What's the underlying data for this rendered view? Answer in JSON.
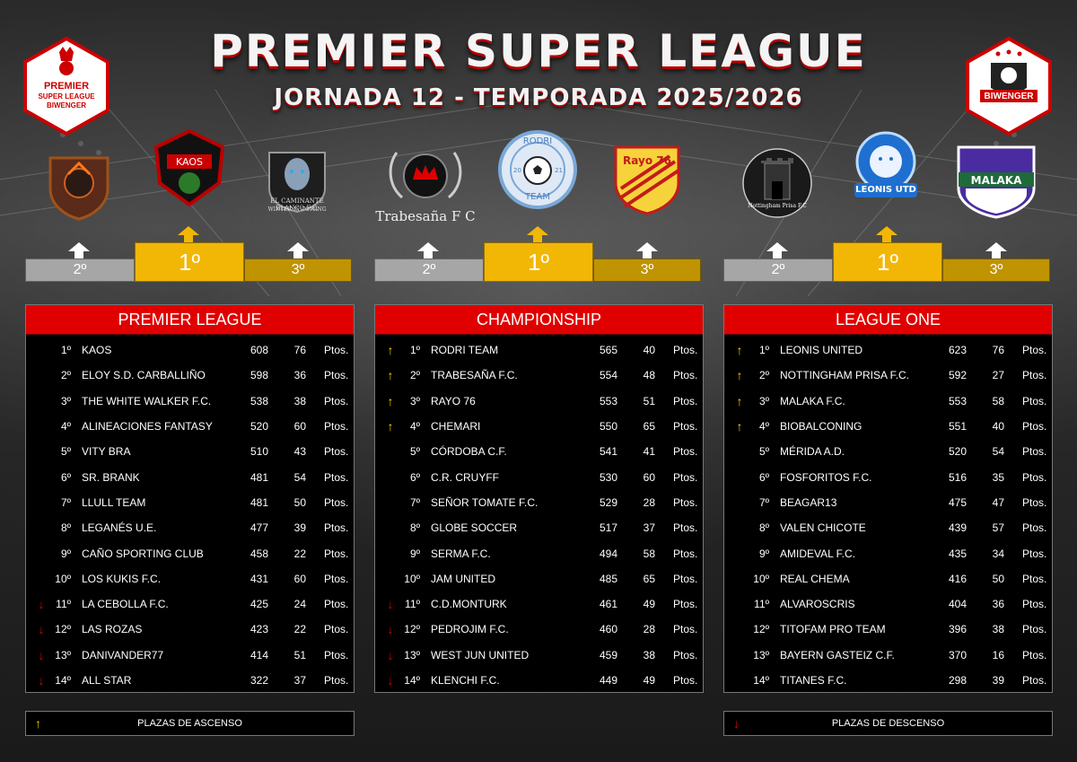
{
  "header": {
    "title": "PREMIER SUPER LEAGUE",
    "subtitle": "JORNADA 12 - TEMPORADA 2025/2026",
    "left_logo": [
      "PREMIER",
      "SUPER LEAGUE",
      "BIWENGER"
    ],
    "right_logo": "BIWENGER"
  },
  "colors": {
    "accent_red": "#e00000",
    "gold": "#f2b705",
    "silver": "#a6a6a6",
    "bronze": "#c09300",
    "up_arrow": "#f5d000",
    "down_arrow": "#e00000"
  },
  "podiums": [
    {
      "league": "PREMIER LEAGUE",
      "first": "1º",
      "second": "2º",
      "third": "3º",
      "logos": [
        {
          "name": "dark-warrior-crest-icon"
        },
        {
          "name": "kaos-crest-icon",
          "text": "KAOS"
        },
        {
          "name": "white-walker-crest-icon",
          "caption": "EL CAMINANTE BLANCO F.C.",
          "caption2": "WINTER IS COMING"
        }
      ]
    },
    {
      "league": "CHAMPIONSHIP",
      "first": "1º",
      "second": "2º",
      "third": "3º",
      "logos": [
        {
          "name": "trabesana-crown-icon",
          "caption": "Trabesaña F C"
        },
        {
          "name": "rodri-team-ball-icon",
          "text1": "RODRI",
          "text2": "TEAM",
          "year1": "20",
          "year2": "21"
        },
        {
          "name": "rayo76-shield-icon",
          "text": "Rayo 76"
        }
      ]
    },
    {
      "league": "LEAGUE ONE",
      "first": "1º",
      "second": "2º",
      "third": "3º",
      "logos": [
        {
          "name": "nottingham-castle-icon",
          "caption": "Nottingham Prisa F.C"
        },
        {
          "name": "leonis-lion-icon",
          "text": "LEONIS UTD"
        },
        {
          "name": "malaka-shield-icon",
          "text": "MALAKA"
        }
      ]
    }
  ],
  "leagues": [
    {
      "title": "PREMIER LEAGUE",
      "rows": [
        {
          "ind": "",
          "pos": "1º",
          "name": "KAOS",
          "points": "608",
          "round": "76",
          "unit": "Ptos."
        },
        {
          "ind": "",
          "pos": "2º",
          "name": "ELOY S.D. CARBALLIÑO",
          "points": "598",
          "round": "36",
          "unit": "Ptos."
        },
        {
          "ind": "",
          "pos": "3º",
          "name": "THE WHITE WALKER F.C.",
          "points": "538",
          "round": "38",
          "unit": "Ptos."
        },
        {
          "ind": "",
          "pos": "4º",
          "name": "ALINEACIONES FANTASY",
          "points": "520",
          "round": "60",
          "unit": "Ptos."
        },
        {
          "ind": "",
          "pos": "5º",
          "name": "VITY BRA",
          "points": "510",
          "round": "43",
          "unit": "Ptos."
        },
        {
          "ind": "",
          "pos": "6º",
          "name": "SR. BRANK",
          "points": "481",
          "round": "54",
          "unit": "Ptos."
        },
        {
          "ind": "",
          "pos": "7º",
          "name": "LLULL TEAM",
          "points": "481",
          "round": "50",
          "unit": "Ptos."
        },
        {
          "ind": "",
          "pos": "8º",
          "name": "LEGANÉS U.E.",
          "points": "477",
          "round": "39",
          "unit": "Ptos."
        },
        {
          "ind": "",
          "pos": "9º",
          "name": "CAÑO SPORTING CLUB",
          "points": "458",
          "round": "22",
          "unit": "Ptos."
        },
        {
          "ind": "",
          "pos": "10º",
          "name": "LOS KUKIS F.C.",
          "points": "431",
          "round": "60",
          "unit": "Ptos."
        },
        {
          "ind": "down",
          "pos": "11º",
          "name": "LA CEBOLLA F.C.",
          "points": "425",
          "round": "24",
          "unit": "Ptos."
        },
        {
          "ind": "down",
          "pos": "12º",
          "name": "LAS ROZAS",
          "points": "423",
          "round": "22",
          "unit": "Ptos."
        },
        {
          "ind": "down",
          "pos": "13º",
          "name": "DANIVANDER77",
          "points": "414",
          "round": "51",
          "unit": "Ptos."
        },
        {
          "ind": "down",
          "pos": "14º",
          "name": "ALL STAR",
          "points": "322",
          "round": "37",
          "unit": "Ptos."
        }
      ]
    },
    {
      "title": "CHAMPIONSHIP",
      "rows": [
        {
          "ind": "up",
          "pos": "1º",
          "name": "RODRI TEAM",
          "points": "565",
          "round": "40",
          "unit": "Ptos."
        },
        {
          "ind": "up",
          "pos": "2º",
          "name": "TRABESAÑA F.C.",
          "points": "554",
          "round": "48",
          "unit": "Ptos."
        },
        {
          "ind": "up",
          "pos": "3º",
          "name": "RAYO 76",
          "points": "553",
          "round": "51",
          "unit": "Ptos."
        },
        {
          "ind": "up",
          "pos": "4º",
          "name": "CHEMARI",
          "points": "550",
          "round": "65",
          "unit": "Ptos."
        },
        {
          "ind": "",
          "pos": "5º",
          "name": "CÓRDOBA C.F.",
          "points": "541",
          "round": "41",
          "unit": "Ptos."
        },
        {
          "ind": "",
          "pos": "6º",
          "name": "C.R. CRUYFF",
          "points": "530",
          "round": "60",
          "unit": "Ptos."
        },
        {
          "ind": "",
          "pos": "7º",
          "name": "SEÑOR TOMATE F.C.",
          "points": "529",
          "round": "28",
          "unit": "Ptos."
        },
        {
          "ind": "",
          "pos": "8º",
          "name": "GLOBE SOCCER",
          "points": "517",
          "round": "37",
          "unit": "Ptos."
        },
        {
          "ind": "",
          "pos": "9º",
          "name": "SERMA F.C.",
          "points": "494",
          "round": "58",
          "unit": "Ptos."
        },
        {
          "ind": "",
          "pos": "10º",
          "name": "JAM UNITED",
          "points": "485",
          "round": "65",
          "unit": "Ptos."
        },
        {
          "ind": "down",
          "pos": "11º",
          "name": "C.D.MONTURK",
          "points": "461",
          "round": "49",
          "unit": "Ptos."
        },
        {
          "ind": "down",
          "pos": "12º",
          "name": "PEDROJIM F.C.",
          "points": "460",
          "round": "28",
          "unit": "Ptos."
        },
        {
          "ind": "down",
          "pos": "13º",
          "name": "WEST JUN UNITED",
          "points": "459",
          "round": "38",
          "unit": "Ptos."
        },
        {
          "ind": "down",
          "pos": "14º",
          "name": "KLENCHI F.C.",
          "points": "449",
          "round": "49",
          "unit": "Ptos."
        }
      ]
    },
    {
      "title": "LEAGUE ONE",
      "rows": [
        {
          "ind": "up",
          "pos": "1º",
          "name": "LEONIS UNITED",
          "points": "623",
          "round": "76",
          "unit": "Ptos."
        },
        {
          "ind": "up",
          "pos": "2º",
          "name": "NOTTINGHAM PRISA F.C.",
          "points": "592",
          "round": "27",
          "unit": "Ptos."
        },
        {
          "ind": "up",
          "pos": "3º",
          "name": "MALAKA F.C.",
          "points": "553",
          "round": "58",
          "unit": "Ptos."
        },
        {
          "ind": "up",
          "pos": "4º",
          "name": "BIOBALCONING",
          "points": "551",
          "round": "40",
          "unit": "Ptos."
        },
        {
          "ind": "",
          "pos": "5º",
          "name": "MÉRIDA A.D.",
          "points": "520",
          "round": "54",
          "unit": "Ptos."
        },
        {
          "ind": "",
          "pos": "6º",
          "name": "FOSFORITOS F.C.",
          "points": "516",
          "round": "35",
          "unit": "Ptos."
        },
        {
          "ind": "",
          "pos": "7º",
          "name": "BEAGAR13",
          "points": "475",
          "round": "47",
          "unit": "Ptos."
        },
        {
          "ind": "",
          "pos": "8º",
          "name": "VALEN CHICOTE",
          "points": "439",
          "round": "57",
          "unit": "Ptos."
        },
        {
          "ind": "",
          "pos": "9º",
          "name": "AMIDEVAL F.C.",
          "points": "435",
          "round": "34",
          "unit": "Ptos."
        },
        {
          "ind": "",
          "pos": "10º",
          "name": "REAL CHEMA",
          "points": "416",
          "round": "50",
          "unit": "Ptos."
        },
        {
          "ind": "",
          "pos": "11º",
          "name": "ALVAROSCRIS",
          "points": "404",
          "round": "36",
          "unit": "Ptos."
        },
        {
          "ind": "",
          "pos": "12º",
          "name": "TITOFAM PRO TEAM",
          "points": "396",
          "round": "38",
          "unit": "Ptos."
        },
        {
          "ind": "",
          "pos": "13º",
          "name": "BAYERN GASTEIZ C.F.",
          "points": "370",
          "round": "16",
          "unit": "Ptos."
        },
        {
          "ind": "",
          "pos": "14º",
          "name": "TITANES F.C.",
          "points": "298",
          "round": "39",
          "unit": "Ptos."
        }
      ]
    }
  ],
  "legend": {
    "promotion": "PLAZAS DE ASCENSO",
    "relegation": "PLAZAS DE DESCENSO"
  }
}
